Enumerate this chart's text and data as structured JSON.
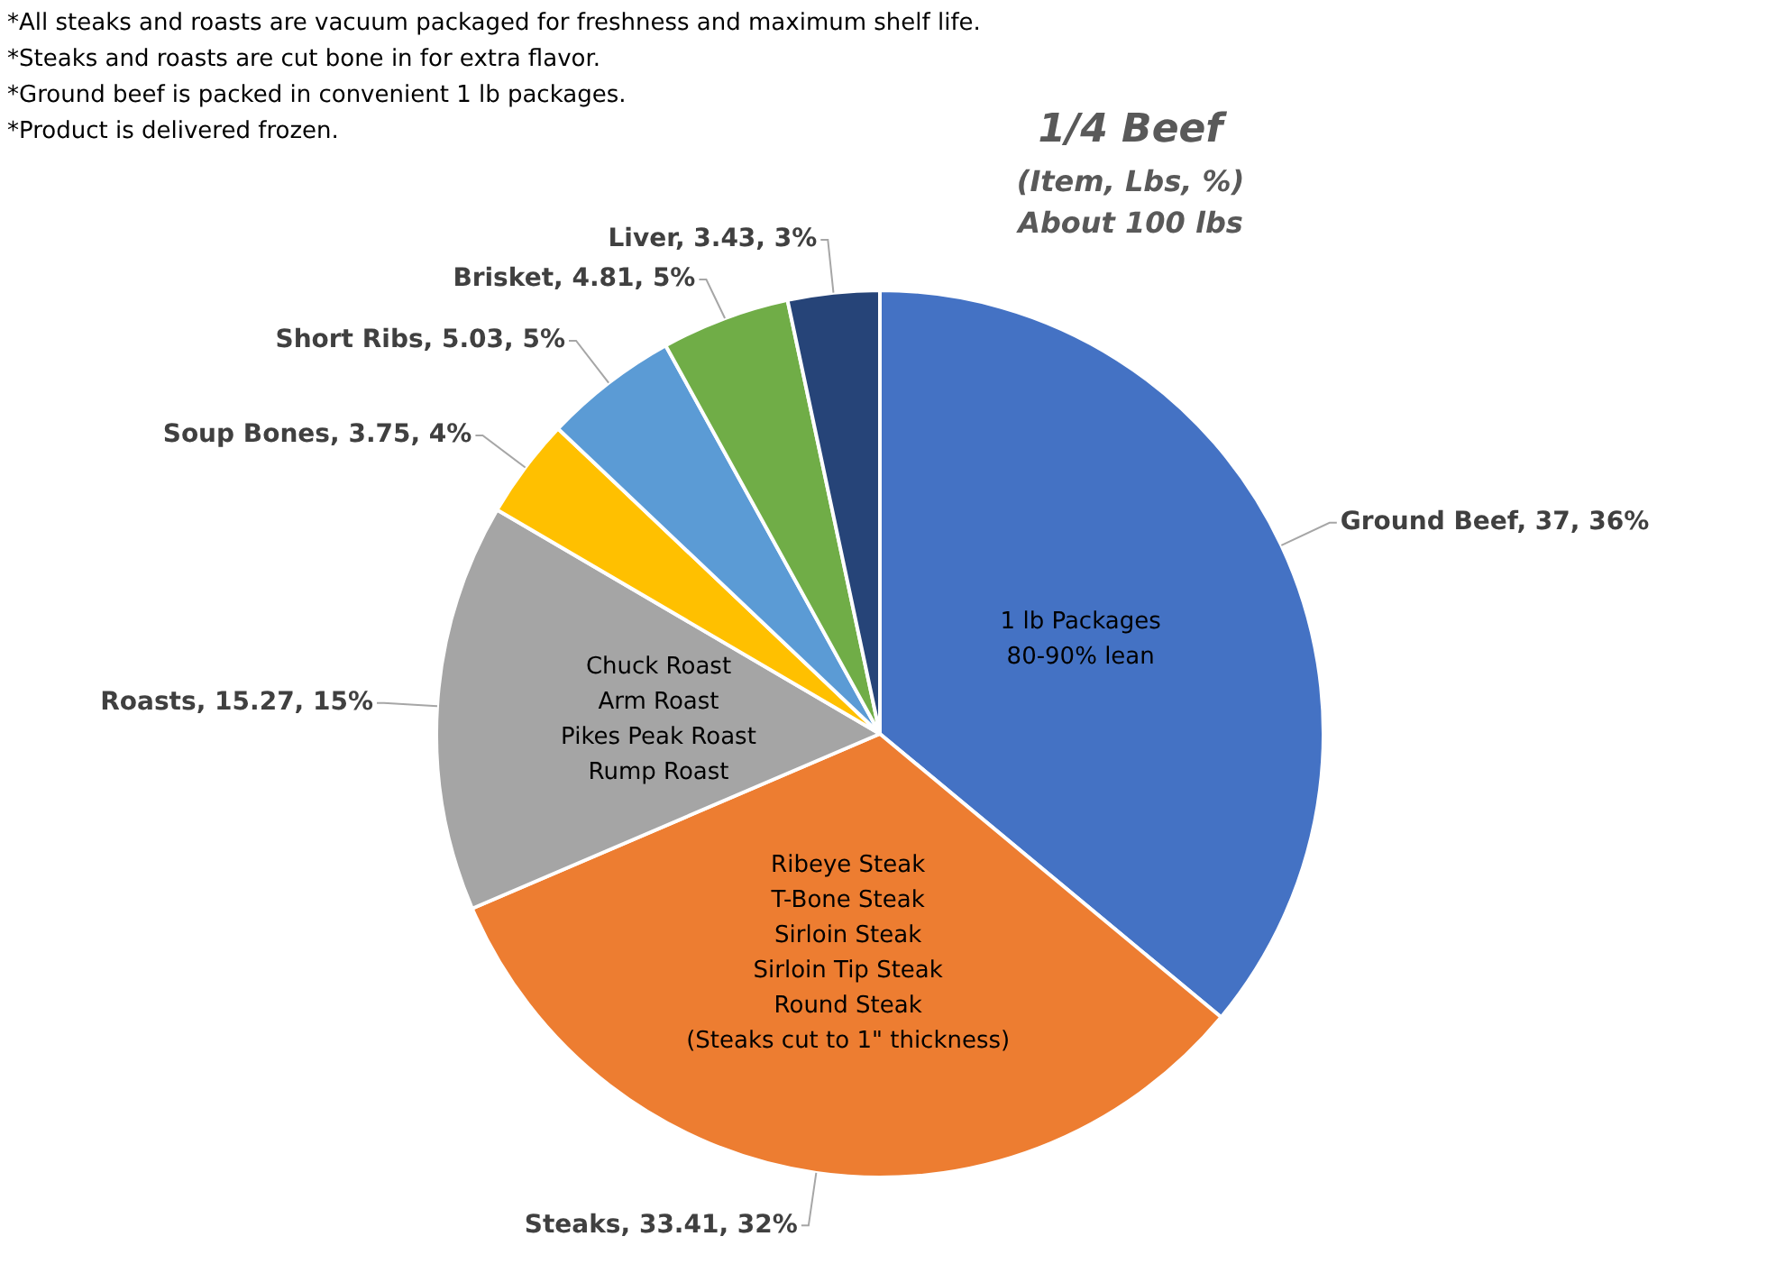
{
  "chart_data": {
    "type": "pie",
    "title": "1/4 Beef",
    "subtitle": "(Item, Lbs, %)\nAbout 100 lbs",
    "categories": [
      "Ground Beef",
      "Steaks",
      "Roasts",
      "Soup Bones",
      "Short Ribs",
      "Brisket",
      "Liver"
    ],
    "values": [
      37,
      33.41,
      15.27,
      3.75,
      5.03,
      4.81,
      3.43
    ],
    "colors": [
      "#4472c4",
      "#ed7d31",
      "#a5a5a5",
      "#ffc000",
      "#5b9bd5",
      "#70ad47",
      "#264478"
    ],
    "value_labels": [
      "37, 36%",
      "33.41, 32%",
      "15.27, 15%",
      "3.75, 4%",
      "5.03, 5%",
      "4.81, 5%",
      "3.43, 3%"
    ],
    "legend": false,
    "annotations": [
      "*All steaks and roasts are vacuum packaged for freshness and maximum shelf life.",
      "*Steaks and roasts are cut bone in for extra flavor.",
      "*Ground beef is packed in convenient 1 lb packages.",
      "*Product is delivered frozen.",
      {
        "text": "1 lb Packages\n80-90% lean",
        "x": "Ground Beef"
      },
      {
        "text": "Ribeye Steak\nT-Bone Steak\nSirloin Steak\nSirloin Tip Steak\nRound Steak\n(Steaks cut to 1\" thickness)",
        "x": "Steaks"
      },
      {
        "text": "Chuck Roast\nArm Roast\nPikes Peak Roast\nRump Roast",
        "x": "Roasts"
      }
    ]
  }
}
